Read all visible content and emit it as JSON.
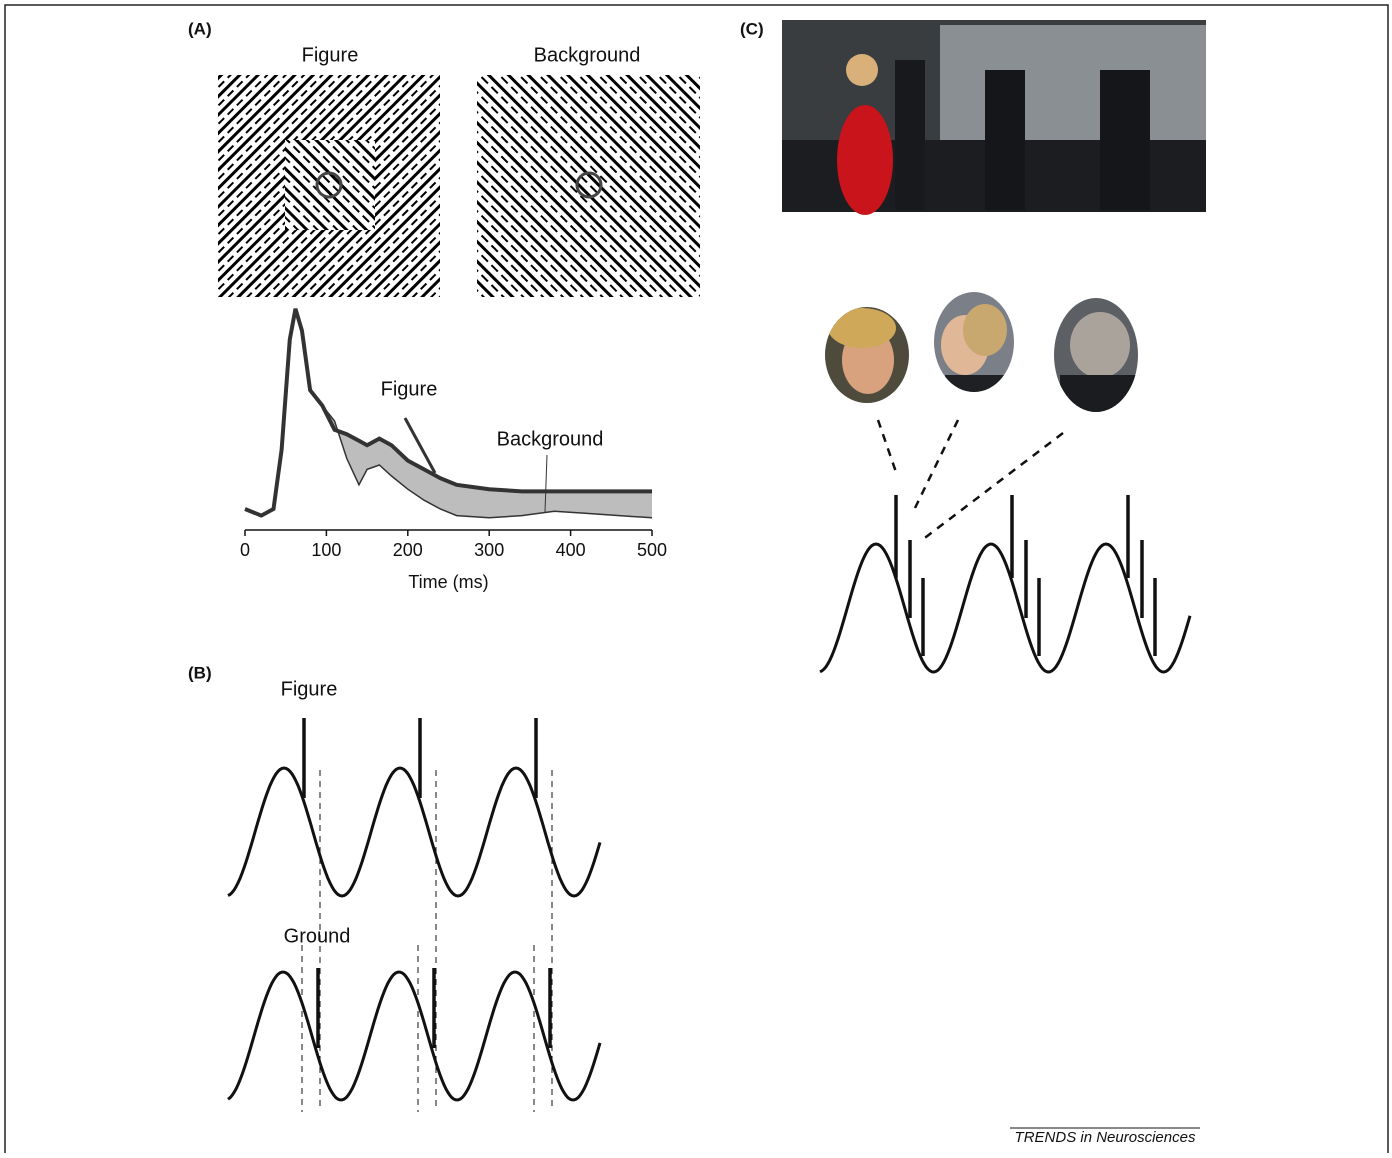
{
  "panels": {
    "a": {
      "label": "(A)",
      "figure_title": "Figure",
      "background_title": "Background"
    },
    "b": {
      "label": "(B)",
      "figure_label": "Figure",
      "ground_label": "Ground"
    },
    "c": {
      "label": "(C)"
    }
  },
  "footer": "TRENDS in Neurosciences",
  "chart_data": {
    "type": "line",
    "xlabel": "Time (ms)",
    "x": [
      0,
      20,
      35,
      45,
      55,
      62,
      70,
      80,
      95,
      110,
      125,
      140,
      150,
      165,
      180,
      200,
      220,
      240,
      260,
      300,
      340,
      380,
      420,
      460,
      500
    ],
    "xlim": [
      0,
      500
    ],
    "xticks": [
      0,
      100,
      200,
      300,
      400,
      500
    ],
    "ylim": [
      0,
      100
    ],
    "series": [
      {
        "name": "Figure",
        "color": "#333333",
        "values": [
          5,
          2,
          5,
          32,
          82,
          96,
          86,
          59,
          52,
          41,
          39,
          36,
          34,
          37,
          34,
          27,
          23,
          19,
          16,
          14,
          13,
          13,
          13,
          13,
          13
        ]
      },
      {
        "name": "Background",
        "color": "#333333",
        "values": [
          5,
          2,
          5,
          32,
          82,
          96,
          86,
          59,
          52,
          45,
          28,
          16,
          23,
          25,
          20,
          14,
          9,
          5,
          2,
          1,
          2,
          4,
          3,
          2,
          1
        ]
      }
    ]
  }
}
